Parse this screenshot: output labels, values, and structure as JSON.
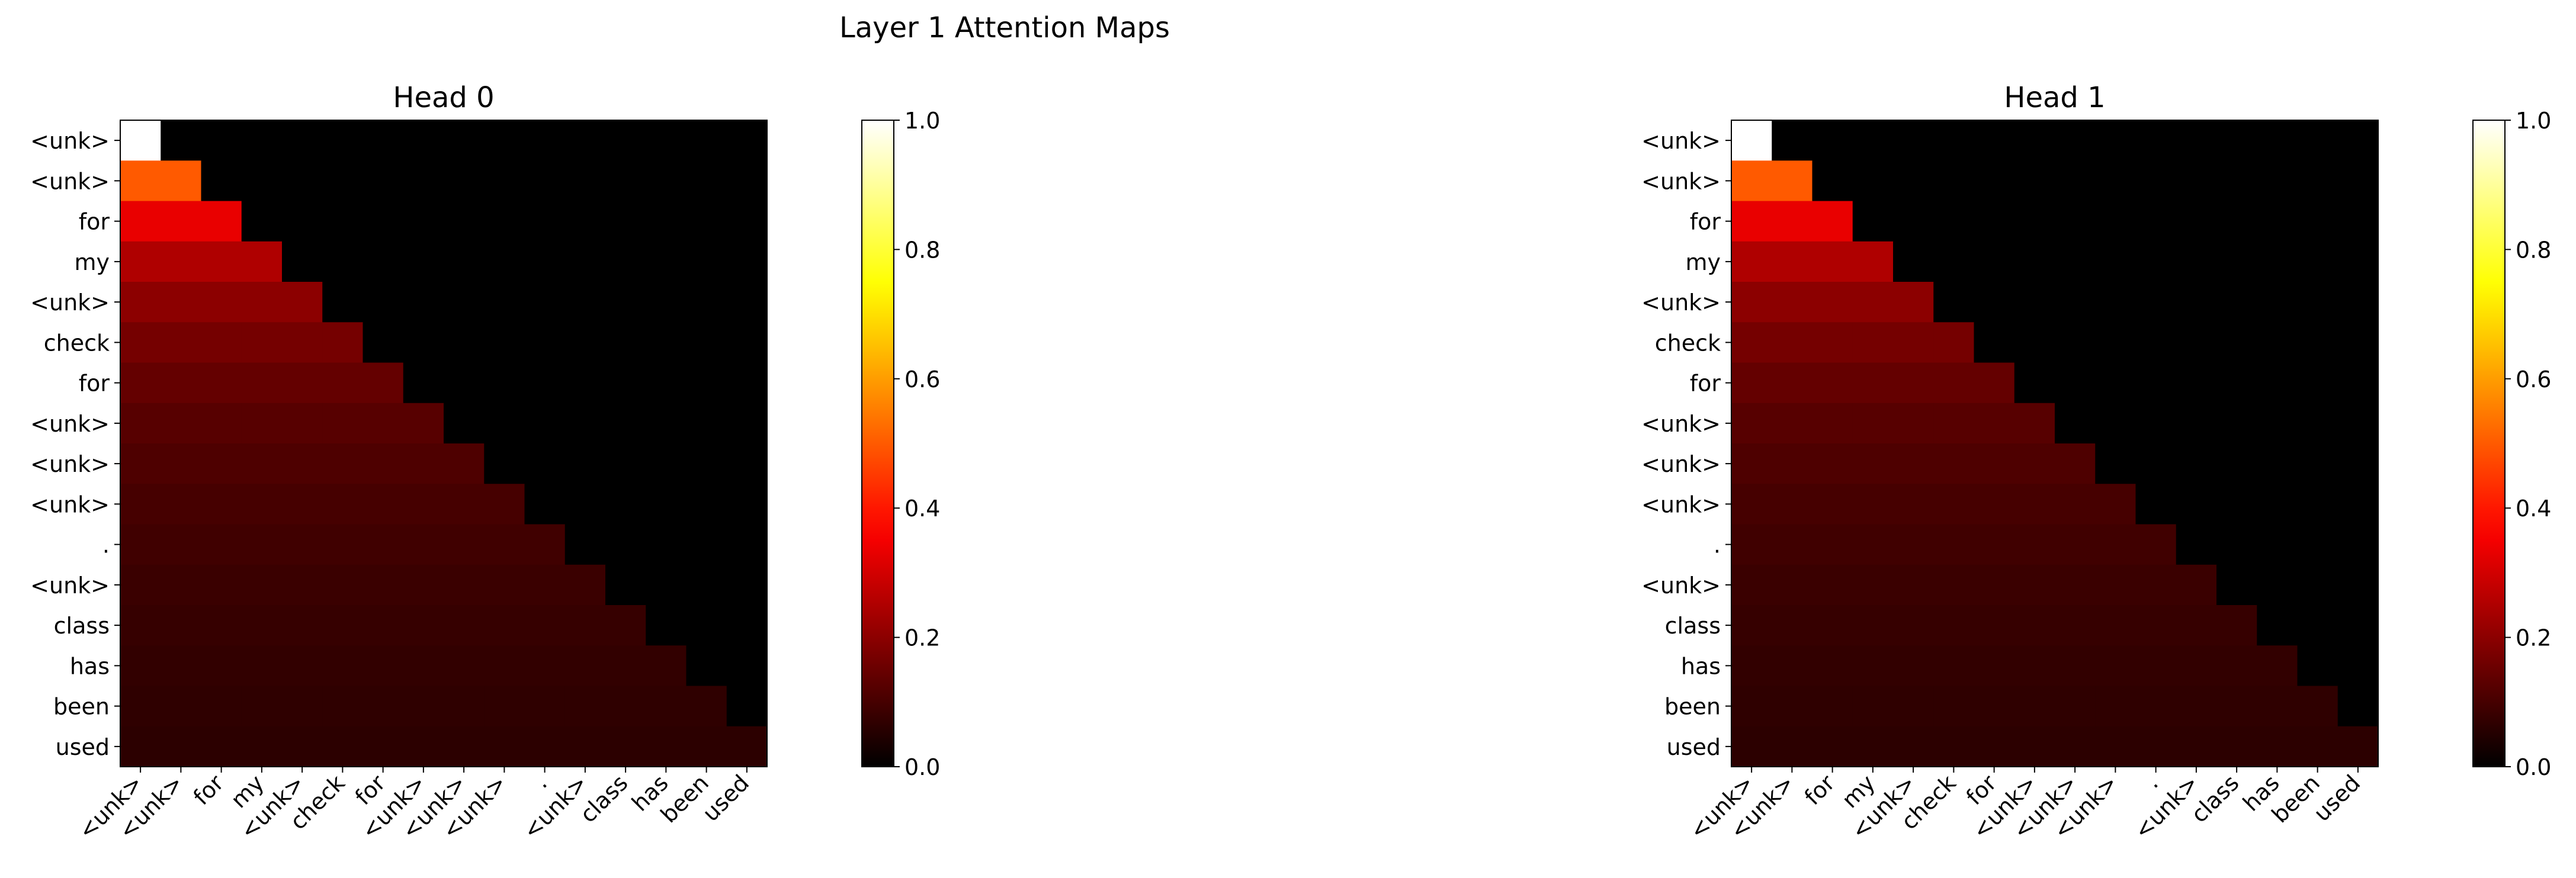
{
  "figure": {
    "suptitle": "Layer 1 Attention Maps"
  },
  "colormap": {
    "name": "hot",
    "stops": [
      "#000000",
      "#ff0000",
      "#ffff00",
      "#ffffff"
    ]
  },
  "tokens": [
    "<unk>",
    "<unk>",
    "for",
    "my",
    "<unk>",
    "check",
    "for",
    "<unk>",
    "<unk>",
    "<unk>",
    ".",
    "<unk>",
    "class",
    "has",
    "been",
    "used"
  ],
  "chart_data": [
    {
      "type": "heatmap",
      "title": "Head 0",
      "colorbar": {
        "vmin": 0.0,
        "vmax": 1.0,
        "ticks": [
          "0.0",
          "0.2",
          "0.4",
          "0.6",
          "0.8",
          "1.0"
        ]
      },
      "attention": [
        [
          1.0
        ],
        [
          0.5,
          0.5
        ],
        [
          0.333,
          0.333,
          0.333
        ],
        [
          0.25,
          0.25,
          0.25,
          0.25
        ],
        [
          0.2,
          0.2,
          0.2,
          0.2,
          0.2
        ],
        [
          0.167,
          0.167,
          0.167,
          0.167,
          0.167,
          0.167
        ],
        [
          0.143,
          0.143,
          0.143,
          0.143,
          0.143,
          0.143,
          0.143
        ],
        [
          0.125,
          0.125,
          0.125,
          0.125,
          0.125,
          0.125,
          0.125,
          0.125
        ],
        [
          0.111,
          0.111,
          0.111,
          0.111,
          0.111,
          0.111,
          0.111,
          0.111,
          0.111
        ],
        [
          0.1,
          0.1,
          0.1,
          0.1,
          0.1,
          0.1,
          0.1,
          0.1,
          0.1,
          0.1
        ],
        [
          0.091,
          0.091,
          0.091,
          0.091,
          0.091,
          0.091,
          0.091,
          0.091,
          0.091,
          0.091,
          0.091
        ],
        [
          0.083,
          0.083,
          0.083,
          0.083,
          0.083,
          0.083,
          0.083,
          0.083,
          0.083,
          0.083,
          0.083,
          0.083
        ],
        [
          0.077,
          0.077,
          0.077,
          0.077,
          0.077,
          0.077,
          0.077,
          0.077,
          0.077,
          0.077,
          0.077,
          0.077,
          0.077
        ],
        [
          0.071,
          0.071,
          0.071,
          0.071,
          0.071,
          0.071,
          0.071,
          0.071,
          0.071,
          0.071,
          0.071,
          0.071,
          0.071,
          0.071
        ],
        [
          0.067,
          0.067,
          0.067,
          0.067,
          0.067,
          0.067,
          0.067,
          0.067,
          0.067,
          0.067,
          0.067,
          0.067,
          0.067,
          0.067,
          0.067
        ],
        [
          0.063,
          0.063,
          0.063,
          0.063,
          0.063,
          0.063,
          0.063,
          0.063,
          0.063,
          0.063,
          0.063,
          0.063,
          0.063,
          0.063,
          0.063,
          0.063
        ]
      ]
    },
    {
      "type": "heatmap",
      "title": "Head 1",
      "colorbar": {
        "vmin": 0.0,
        "vmax": 1.0,
        "ticks": [
          "0.0",
          "0.2",
          "0.4",
          "0.6",
          "0.8",
          "1.0"
        ]
      },
      "attention": [
        [
          1.0
        ],
        [
          0.5,
          0.5
        ],
        [
          0.333,
          0.333,
          0.333
        ],
        [
          0.25,
          0.25,
          0.25,
          0.25
        ],
        [
          0.2,
          0.2,
          0.2,
          0.2,
          0.2
        ],
        [
          0.167,
          0.167,
          0.167,
          0.167,
          0.167,
          0.167
        ],
        [
          0.143,
          0.143,
          0.143,
          0.143,
          0.143,
          0.143,
          0.143
        ],
        [
          0.125,
          0.125,
          0.125,
          0.125,
          0.125,
          0.125,
          0.125,
          0.125
        ],
        [
          0.111,
          0.111,
          0.111,
          0.111,
          0.111,
          0.111,
          0.111,
          0.111,
          0.111
        ],
        [
          0.1,
          0.1,
          0.1,
          0.1,
          0.1,
          0.1,
          0.1,
          0.1,
          0.1,
          0.1
        ],
        [
          0.091,
          0.091,
          0.091,
          0.091,
          0.091,
          0.091,
          0.091,
          0.091,
          0.091,
          0.091,
          0.091
        ],
        [
          0.083,
          0.083,
          0.083,
          0.083,
          0.083,
          0.083,
          0.083,
          0.083,
          0.083,
          0.083,
          0.083,
          0.083
        ],
        [
          0.077,
          0.077,
          0.077,
          0.077,
          0.077,
          0.077,
          0.077,
          0.077,
          0.077,
          0.077,
          0.077,
          0.077,
          0.077
        ],
        [
          0.071,
          0.071,
          0.071,
          0.071,
          0.071,
          0.071,
          0.071,
          0.071,
          0.071,
          0.071,
          0.071,
          0.071,
          0.071,
          0.071
        ],
        [
          0.067,
          0.067,
          0.067,
          0.067,
          0.067,
          0.067,
          0.067,
          0.067,
          0.067,
          0.067,
          0.067,
          0.067,
          0.067,
          0.067,
          0.067
        ],
        [
          0.063,
          0.063,
          0.063,
          0.063,
          0.063,
          0.063,
          0.063,
          0.063,
          0.063,
          0.063,
          0.063,
          0.063,
          0.063,
          0.063,
          0.063,
          0.063
        ]
      ]
    }
  ]
}
